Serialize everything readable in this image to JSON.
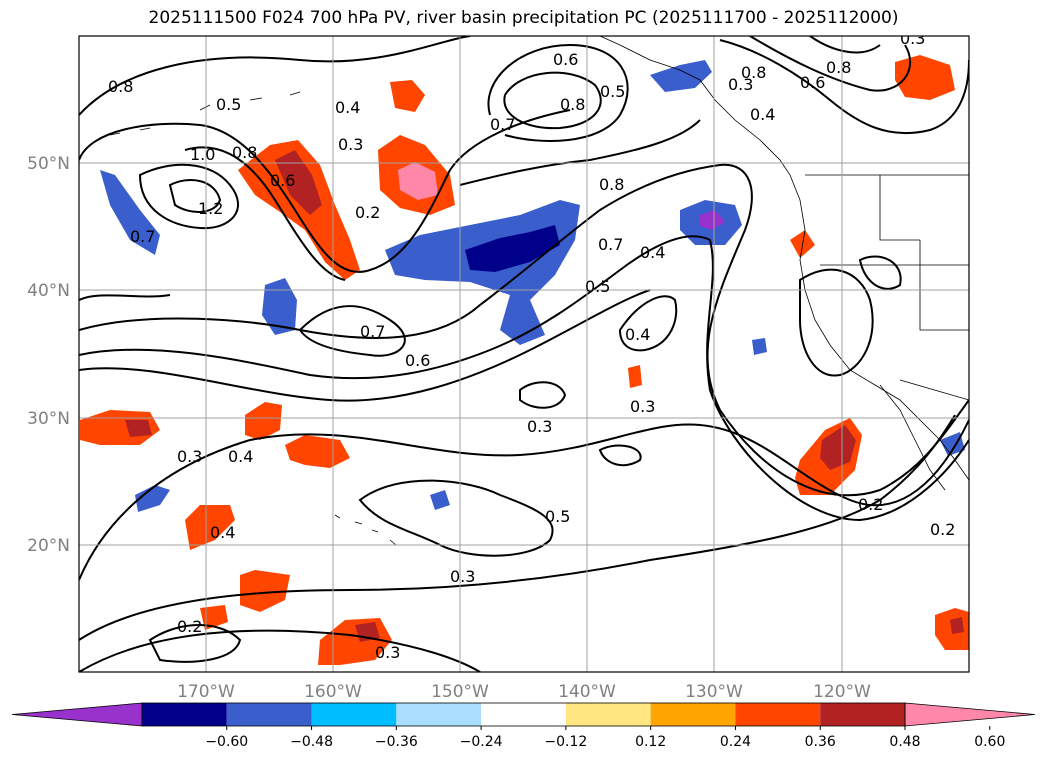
{
  "title": "2025111500 F024 700 hPa PV, river basin precipitation PC (2025111700 - 2025112000)",
  "map": {
    "lat_labels": [
      "50°N",
      "40°N",
      "30°N",
      "20°N"
    ],
    "lon_labels": [
      "170°W",
      "160°W",
      "150°W",
      "140°W",
      "130°W",
      "120°W"
    ],
    "contour_labels": [
      "0.8",
      "0.5",
      "0.4",
      "0.3",
      "0.2",
      "1.0",
      "0.8",
      "1.2",
      "0.7",
      "0.6",
      "0.6",
      "0.7",
      "0.8",
      "0.5",
      "0.8",
      "0.3",
      "0.4",
      "0.8",
      "0.6",
      "0.8",
      "0.7",
      "0.4",
      "0.5",
      "0.4",
      "0.7",
      "0.6",
      "0.4",
      "0.3",
      "0.3",
      "0.3",
      "0.4",
      "0.3",
      "0.5",
      "0.3",
      "0.2",
      "0.3",
      "0.2",
      "0.2"
    ]
  },
  "colorbar": {
    "ticks": [
      "−0.60",
      "−0.48",
      "−0.36",
      "−0.24",
      "−0.12",
      "0.12",
      "0.24",
      "0.36",
      "0.48",
      "0.60"
    ],
    "colors": [
      "#9932cc",
      "#00008b",
      "#3a5fcd",
      "#00bfff",
      "#aadfff",
      "#ffffff",
      "#ffe680",
      "#ffa500",
      "#ff4500",
      "#b22222",
      "#ff88aa"
    ]
  }
}
